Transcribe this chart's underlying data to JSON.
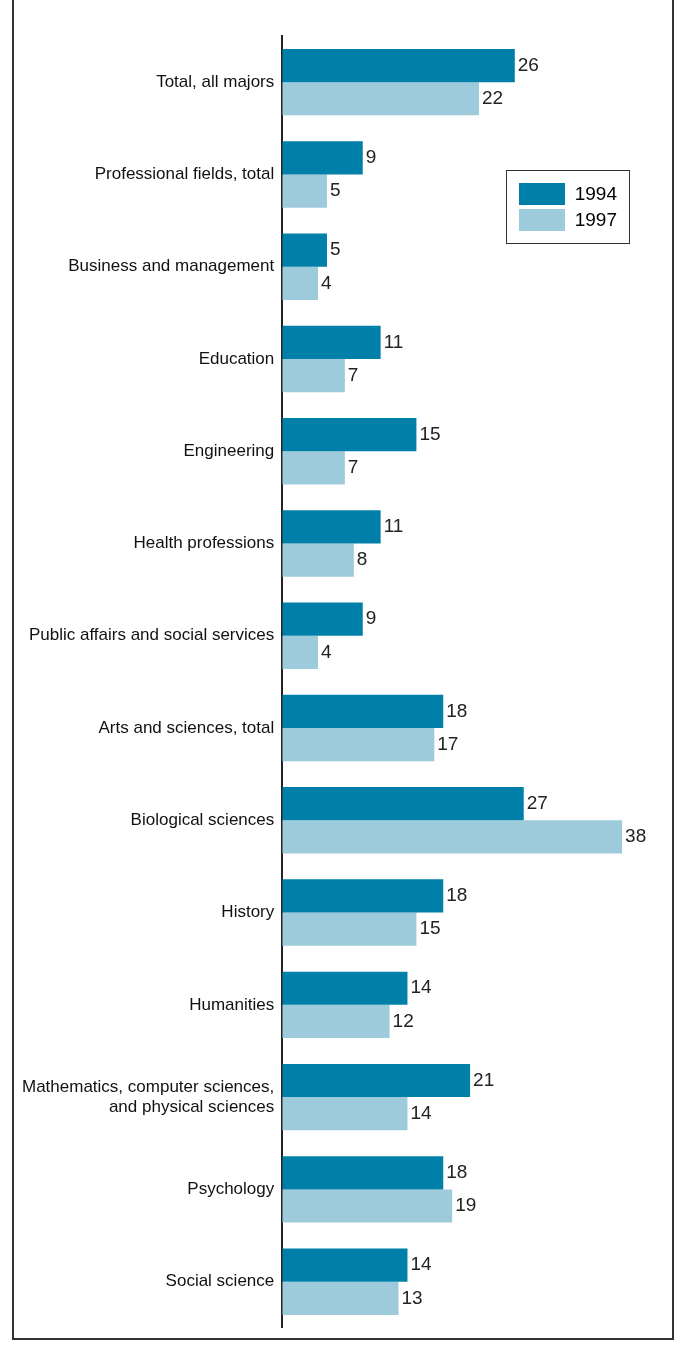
{
  "chart_data": {
    "type": "bar",
    "orientation": "horizontal",
    "categories": [
      "Total, all majors",
      "Professional fields, total",
      "Business and management",
      "Education",
      "Engineering",
      "Health professions",
      "Public affairs and social services",
      "Arts and sciences, total",
      "Biological sciences",
      "History",
      "Humanities",
      "Mathematics, computer sciences, and physical sciences",
      "Psychology",
      "Social science"
    ],
    "series": [
      {
        "name": "1994",
        "color": "#0080a8",
        "values": [
          26,
          9,
          5,
          11,
          15,
          11,
          9,
          18,
          27,
          18,
          14,
          21,
          18,
          14
        ]
      },
      {
        "name": "1997",
        "color": "#9ecbdc",
        "values": [
          22,
          5,
          4,
          7,
          7,
          8,
          4,
          17,
          38,
          15,
          12,
          14,
          19,
          13
        ]
      }
    ],
    "data_labels": true,
    "legend": "top right"
  }
}
